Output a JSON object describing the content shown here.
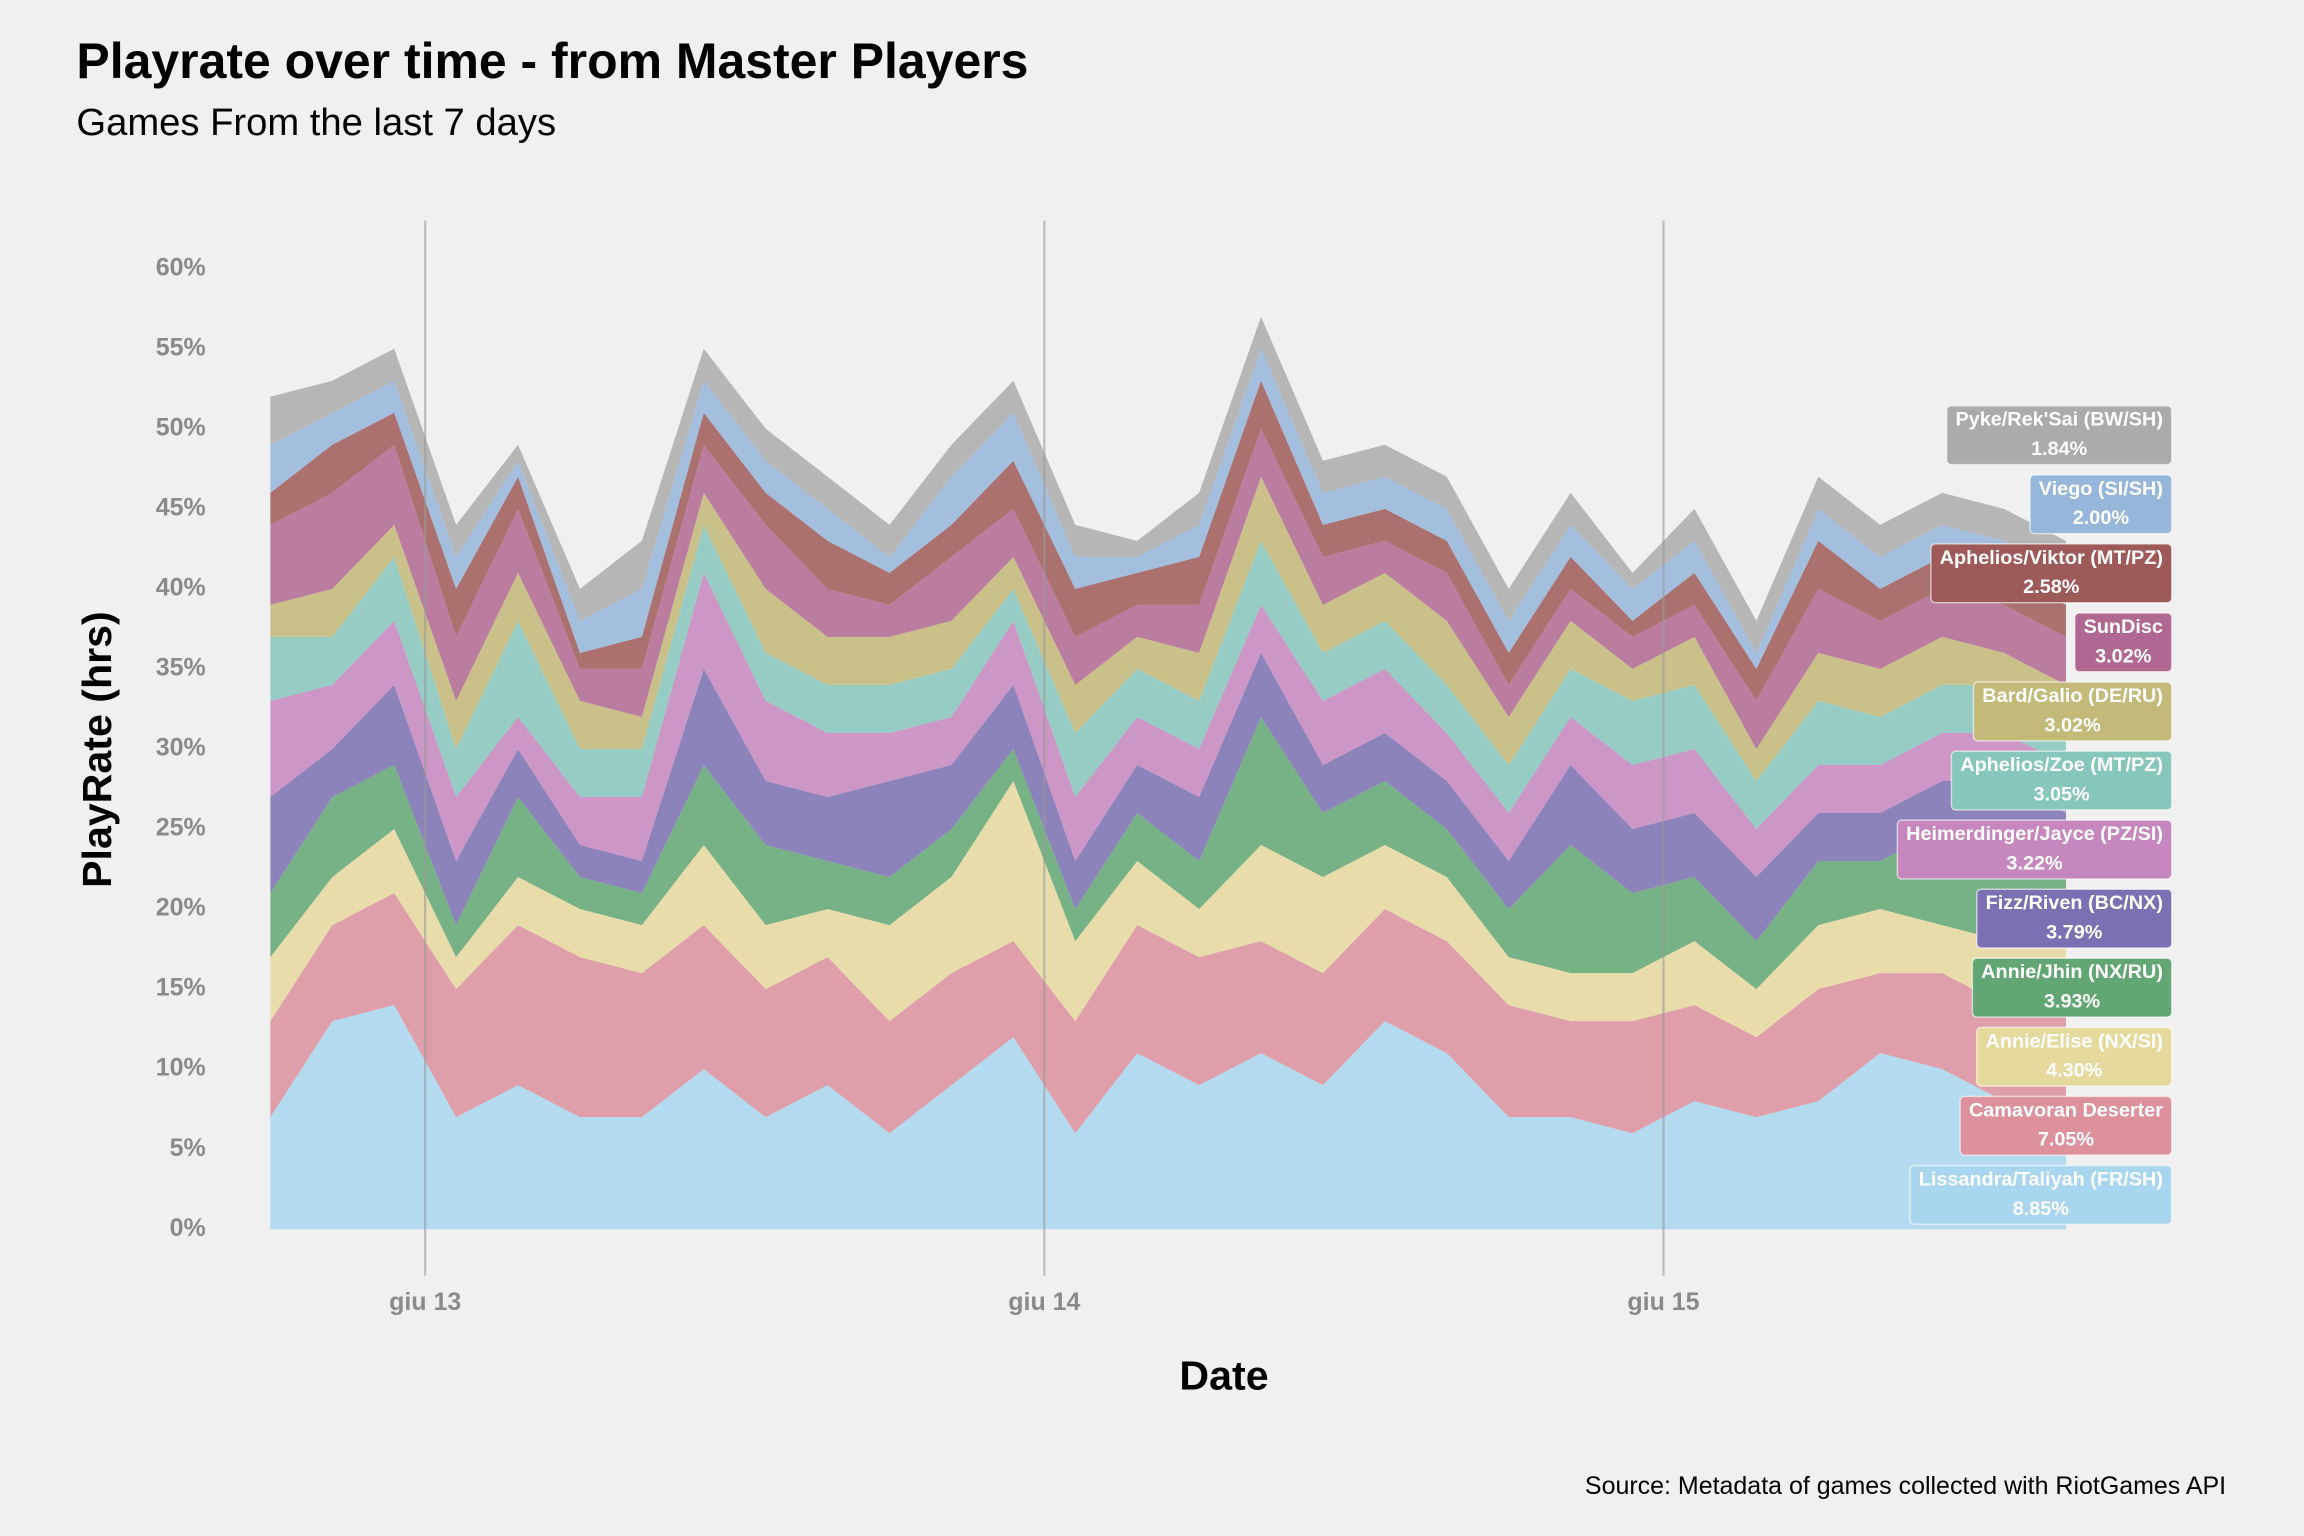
{
  "chart_data": {
    "type": "stacked_area",
    "title": "Playrate over time - from Master Players",
    "subtitle": "Games From the last 7 days",
    "x_label": "Date",
    "y_label": "PlayRate (hrs)",
    "source": "Source: Metadata of games collected with RiotGames API",
    "x": [
      12.75,
      12.85,
      12.95,
      13.05,
      13.15,
      13.25,
      13.35,
      13.45,
      13.55,
      13.65,
      13.75,
      13.85,
      13.95,
      14.05,
      14.15,
      14.25,
      14.35,
      14.45,
      14.55,
      14.65,
      14.75,
      14.85,
      14.95,
      15.05,
      15.15,
      15.25,
      15.35,
      15.45,
      15.55,
      15.65
    ],
    "xlim": [
      12.75,
      15.65
    ],
    "xticks": [
      {
        "value": 13,
        "label": "giu 13"
      },
      {
        "value": 14,
        "label": "giu 14"
      },
      {
        "value": 15,
        "label": "giu 15"
      }
    ],
    "ylim": [
      -2.9,
      63
    ],
    "yticks": [
      {
        "value": 0,
        "label": "0%"
      },
      {
        "value": 5,
        "label": "5%"
      },
      {
        "value": 10,
        "label": "10%"
      },
      {
        "value": 15,
        "label": "15%"
      },
      {
        "value": 20,
        "label": "20%"
      },
      {
        "value": 25,
        "label": "25%"
      },
      {
        "value": 30,
        "label": "30%"
      },
      {
        "value": 35,
        "label": "35%"
      },
      {
        "value": 40,
        "label": "40%"
      },
      {
        "value": 45,
        "label": "45%"
      },
      {
        "value": 50,
        "label": "50%"
      },
      {
        "value": 55,
        "label": "55%"
      },
      {
        "value": 60,
        "label": "60%"
      }
    ],
    "grid": true,
    "series": [
      {
        "name": "Lissandra/Taliyah (FR/SH)",
        "share_label": "8.85%",
        "color": "#a8d6ee",
        "values": [
          7,
          13,
          14,
          7,
          9,
          7,
          7,
          10,
          7,
          9,
          6,
          9,
          12,
          6,
          11,
          9,
          11,
          9,
          13,
          11,
          7,
          7,
          6,
          8,
          7,
          8,
          11,
          10,
          8,
          8
        ]
      },
      {
        "name": "Camavoran Deserter",
        "share_label": "7.05%",
        "color": "#dc919d",
        "values": [
          6,
          6,
          7,
          8,
          10,
          10,
          9,
          9,
          8,
          8,
          7,
          7,
          6,
          7,
          8,
          8,
          7,
          7,
          7,
          7,
          7,
          6,
          7,
          6,
          5,
          7,
          5,
          6,
          6,
          6
        ]
      },
      {
        "name": "Annie/Elise (NX/SI)",
        "share_label": "4.30%",
        "color": "#e6d99e",
        "values": [
          4,
          3,
          4,
          2,
          3,
          3,
          3,
          5,
          4,
          3,
          6,
          6,
          10,
          5,
          4,
          3,
          6,
          6,
          4,
          4,
          3,
          3,
          3,
          4,
          3,
          4,
          4,
          3,
          4,
          4
        ]
      },
      {
        "name": "Annie/Jhin (NX/RU)",
        "share_label": "3.93%",
        "color": "#62a673",
        "values": [
          4,
          5,
          4,
          2,
          5,
          2,
          2,
          5,
          5,
          3,
          3,
          3,
          2,
          2,
          3,
          3,
          8,
          4,
          4,
          3,
          3,
          8,
          5,
          4,
          3,
          4,
          3,
          6,
          7,
          5
        ]
      },
      {
        "name": "Fizz/Riven (BC/NX)",
        "share_label": "3.79%",
        "color": "#7a70b2",
        "values": [
          6,
          3,
          5,
          4,
          3,
          2,
          2,
          6,
          4,
          4,
          6,
          4,
          4,
          3,
          3,
          4,
          4,
          3,
          3,
          3,
          3,
          5,
          4,
          4,
          4,
          3,
          3,
          3,
          3,
          3
        ]
      },
      {
        "name": "Heimerdinger/Jayce (PZ/SI)",
        "share_label": "3.22%",
        "color": "#c687bf",
        "values": [
          6,
          4,
          4,
          4,
          2,
          3,
          4,
          6,
          5,
          4,
          3,
          3,
          4,
          4,
          3,
          3,
          3,
          4,
          4,
          3,
          3,
          3,
          4,
          4,
          3,
          3,
          3,
          3,
          3,
          3
        ]
      },
      {
        "name": "Aphelios/Zoe (MT/PZ)",
        "share_label": "3.05%",
        "color": "#86c6bb",
        "values": [
          4,
          3,
          4,
          3,
          6,
          3,
          3,
          3,
          3,
          3,
          3,
          3,
          2,
          4,
          3,
          3,
          4,
          3,
          3,
          3,
          3,
          3,
          4,
          4,
          3,
          4,
          3,
          3,
          3,
          3
        ]
      },
      {
        "name": "Bard/Galio (DE/RU)",
        "share_label": "3.02%",
        "color": "#c3b978",
        "values": [
          2,
          3,
          2,
          3,
          3,
          3,
          2,
          2,
          4,
          3,
          3,
          3,
          2,
          3,
          2,
          3,
          4,
          3,
          3,
          4,
          3,
          3,
          2,
          3,
          2,
          3,
          3,
          3,
          2,
          2
        ]
      },
      {
        "name": "SunDisc",
        "share_label": "3.02%",
        "color": "#b06892",
        "values": [
          5,
          6,
          5,
          4,
          4,
          2,
          3,
          3,
          4,
          3,
          2,
          4,
          3,
          3,
          2,
          3,
          3,
          3,
          2,
          3,
          2,
          2,
          2,
          2,
          3,
          4,
          3,
          3,
          3,
          3
        ]
      },
      {
        "name": "Aphelios/Viktor (MT/PZ)",
        "share_label": "2.58%",
        "color": "#9e5a58",
        "values": [
          2,
          3,
          2,
          3,
          2,
          1,
          2,
          2,
          2,
          3,
          2,
          2,
          3,
          3,
          2,
          3,
          3,
          2,
          2,
          2,
          2,
          2,
          1,
          2,
          2,
          3,
          2,
          2,
          2,
          2
        ]
      },
      {
        "name": "Viego (SI/SH)",
        "share_label": "2.00%",
        "color": "#96b6da",
        "values": [
          3,
          2,
          2,
          2,
          1,
          2,
          3,
          2,
          2,
          2,
          1,
          3,
          3,
          2,
          1,
          2,
          2,
          2,
          2,
          2,
          2,
          2,
          2,
          2,
          1,
          2,
          2,
          2,
          2,
          2
        ]
      },
      {
        "name": "Pyke/Rek'Sai (BW/SH)",
        "share_label": "1.84%",
        "color": "#ababab",
        "values": [
          3,
          2,
          2,
          2,
          1,
          2,
          3,
          2,
          2,
          2,
          2,
          2,
          2,
          2,
          1,
          2,
          2,
          2,
          2,
          2,
          2,
          2,
          1,
          2,
          2,
          2,
          2,
          2,
          2,
          2
        ]
      }
    ]
  }
}
